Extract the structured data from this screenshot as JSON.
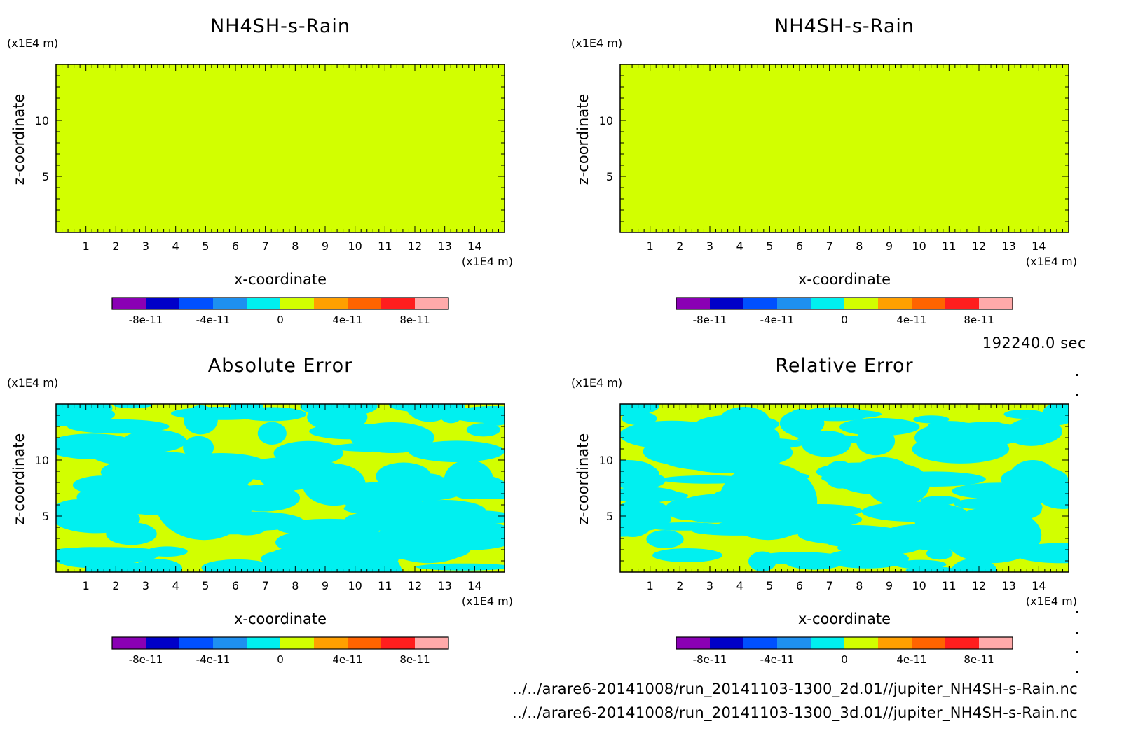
{
  "figure": {
    "time_label": "192240.0 sec",
    "files": [
      "../../arare6-20141008/run_20141103-1300_2d.01//jupiter_NH4SH-s-Rain.nc",
      "../../arare6-20141008/run_20141103-1300_3d.01//jupiter_NH4SH-s-Rain.nc"
    ],
    "background": "#ffffff"
  },
  "colorbar": {
    "colors": [
      "#8a00b4",
      "#0000c8",
      "#0050ff",
      "#1e90f0",
      "#00f0f0",
      "#d2ff00",
      "#ffa000",
      "#ff6400",
      "#ff1e1e",
      "#ffaaaa"
    ],
    "tick_values": [
      -8e-11,
      -4e-11,
      0,
      4e-11,
      8e-11
    ],
    "tick_labels": [
      "-8e-11",
      "-4e-11",
      "0",
      "4e-11",
      "8e-11"
    ],
    "range": [
      -1e-10,
      1e-10
    ]
  },
  "chart_data": [
    {
      "type": "heatmap",
      "title": "NH4SH-s-Rain",
      "xlabel": "x-coordinate",
      "ylabel": "z-coordinate",
      "x_unit": "(x1E4 m)",
      "y_unit": "(x1E4 m)",
      "xlim": [
        0,
        15
      ],
      "ylim": [
        0,
        15
      ],
      "x_ticks": [
        1,
        2,
        3,
        4,
        5,
        6,
        7,
        8,
        9,
        10,
        11,
        12,
        13,
        14
      ],
      "y_ticks": [
        5,
        10
      ],
      "field": "uniform",
      "fill_color": "#d2ff00",
      "value": 0
    },
    {
      "type": "heatmap",
      "title": "NH4SH-s-Rain",
      "xlabel": "x-coordinate",
      "ylabel": "z-coordinate",
      "x_unit": "(x1E4 m)",
      "y_unit": "(x1E4 m)",
      "xlim": [
        0,
        15
      ],
      "ylim": [
        0,
        15
      ],
      "x_ticks": [
        1,
        2,
        3,
        4,
        5,
        6,
        7,
        8,
        9,
        10,
        11,
        12,
        13,
        14
      ],
      "y_ticks": [
        5,
        10
      ],
      "field": "uniform",
      "fill_color": "#d2ff00",
      "value": 0
    },
    {
      "type": "heatmap",
      "title": "Absolute Error",
      "xlabel": "x-coordinate",
      "ylabel": "z-coordinate",
      "x_unit": "(x1E4 m)",
      "y_unit": "(x1E4 m)",
      "xlim": [
        0,
        15
      ],
      "ylim": [
        0,
        15
      ],
      "x_ticks": [
        1,
        2,
        3,
        4,
        5,
        6,
        7,
        8,
        9,
        10,
        11,
        12,
        13,
        14
      ],
      "y_ticks": [
        5,
        10
      ],
      "field": "patchy",
      "fill_color": "#d2ff00",
      "patch_color": "#00f0f0"
    },
    {
      "type": "heatmap",
      "title": "Relative Error",
      "xlabel": "x-coordinate",
      "ylabel": "z-coordinate",
      "x_unit": "(x1E4 m)",
      "y_unit": "(x1E4 m)",
      "xlim": [
        0,
        15
      ],
      "ylim": [
        0,
        15
      ],
      "x_ticks": [
        1,
        2,
        3,
        4,
        5,
        6,
        7,
        8,
        9,
        10,
        11,
        12,
        13,
        14
      ],
      "y_ticks": [
        5,
        10
      ],
      "field": "patchy",
      "fill_color": "#d2ff00",
      "patch_color": "#00f0f0"
    }
  ]
}
